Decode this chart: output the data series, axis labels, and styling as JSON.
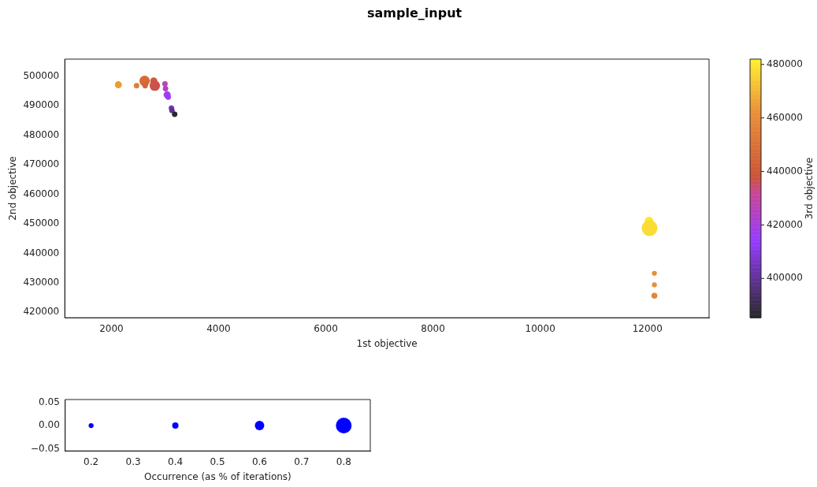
{
  "chart_data": [
    {
      "type": "bubble",
      "title": "sample_input",
      "xlabel": "1st objective",
      "ylabel": "2nd objective",
      "clabel": "3rd objective",
      "x": [
        2130,
        2470,
        2620,
        2630,
        2790,
        2810,
        3000,
        3010,
        3040,
        3060,
        3120,
        3130,
        3180,
        12030,
        12040,
        12130,
        12130,
        12130
      ],
      "values": [
        497100,
        496800,
        498400,
        496800,
        498400,
        496800,
        497400,
        495800,
        493700,
        492900,
        489200,
        488400,
        487100,
        450900,
        448500,
        433200,
        429300,
        425600
      ],
      "sizes": [
        0.2,
        0.12,
        0.44,
        0.12,
        0.2,
        0.44,
        0.12,
        0.12,
        0.2,
        0.12,
        0.12,
        0.12,
        0.12,
        0.31,
        1,
        0.1,
        0.1,
        0.14
      ],
      "cvalues": [
        465000,
        455000,
        447000,
        445000,
        440000,
        437000,
        428000,
        425000,
        418000,
        416000,
        405000,
        400000,
        386000,
        480000,
        478000,
        462000,
        462000,
        458000
      ],
      "xlim": [
        1130,
        13150
      ],
      "ylim": [
        418150,
        505800
      ],
      "clim": [
        385300,
        482000
      ],
      "xticks": [
        2000,
        4000,
        6000,
        8000,
        10000,
        12000
      ],
      "yticks": [
        420000,
        430000,
        440000,
        450000,
        460000,
        470000,
        480000,
        490000,
        500000
      ],
      "cticks": [
        400000,
        420000,
        440000,
        460000,
        480000
      ]
    },
    {
      "type": "bubble",
      "xlabel": "Occurrence (as % of iterations)",
      "color": "#0000ff",
      "x": [
        0.2,
        0.4,
        0.6,
        0.8
      ],
      "values": [
        0,
        0,
        0,
        0
      ],
      "sizes": [
        0.1,
        0.16,
        0.36,
        1
      ],
      "xlim": [
        0.1385,
        0.863
      ],
      "ylim": [
        -0.0545,
        0.056
      ],
      "xticks": [
        0.2,
        0.3,
        0.4,
        0.5,
        0.6,
        0.7,
        0.8
      ],
      "yticks": [
        {
          "value": -0.05,
          "label": "−0.05"
        },
        {
          "value": 0,
          "label": "0.00"
        },
        {
          "value": 0.05,
          "label": "0.05"
        }
      ]
    }
  ]
}
